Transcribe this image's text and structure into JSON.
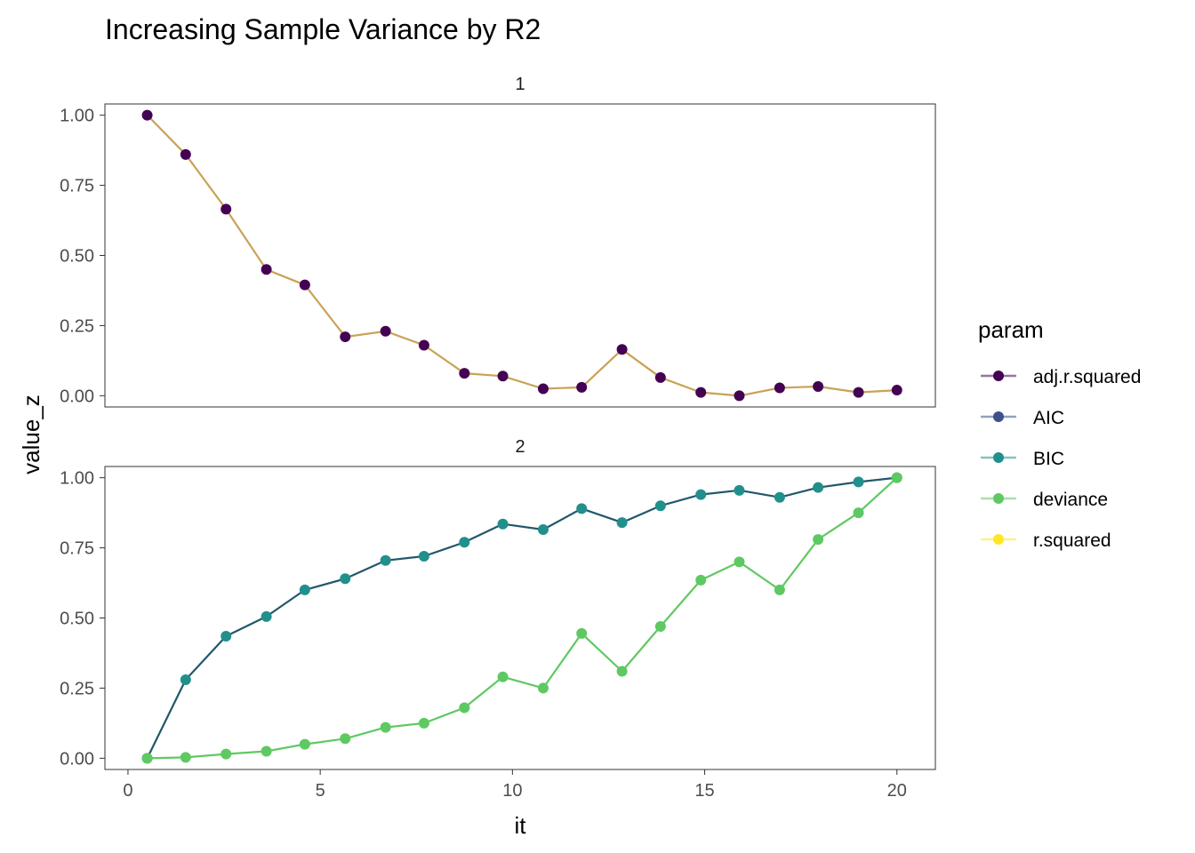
{
  "chart_data": {
    "type": "line",
    "title": "Increasing Sample Variance by R2",
    "xlabel": "it",
    "ylabel": "value_z",
    "xlim": [
      -0.6,
      21
    ],
    "ylim": [
      -0.04,
      1.04
    ],
    "x_ticks": [
      0,
      5,
      10,
      15,
      20
    ],
    "x_tick_labels": [
      "0",
      "5",
      "10",
      "15",
      "20"
    ],
    "y_ticks": [
      0,
      0.25,
      0.5,
      0.75,
      1
    ],
    "y_tick_labels": [
      "0.00",
      "0.25",
      "0.50",
      "0.75",
      "1.00"
    ],
    "grid": false,
    "legend": {
      "title": "param",
      "position": "right",
      "entries": [
        {
          "name": "adj.r.squared",
          "color": "#440154"
        },
        {
          "name": "AIC",
          "color": "#3b528b"
        },
        {
          "name": "BIC",
          "color": "#21908c"
        },
        {
          "name": "deviance",
          "color": "#5ec962"
        },
        {
          "name": "r.squared",
          "color": "#fde725"
        }
      ]
    },
    "x": [
      0.5,
      1.5,
      2.55,
      3.6,
      4.6,
      5.65,
      6.7,
      7.7,
      8.75,
      9.75,
      10.8,
      11.8,
      12.85,
      13.85,
      14.9,
      15.9,
      16.95,
      17.95,
      19.0,
      20.0
    ],
    "panels": [
      {
        "strip": "1",
        "series": [
          {
            "name": "adj.r.squared",
            "color": "#440154",
            "line_color": "#c9a255",
            "values": [
              1.0,
              0.86,
              0.665,
              0.45,
              0.395,
              0.21,
              0.23,
              0.18,
              0.08,
              0.07,
              0.025,
              0.03,
              0.165,
              0.065,
              0.012,
              0.0,
              0.028,
              0.033,
              0.012,
              0.02
            ]
          }
        ]
      },
      {
        "strip": "2",
        "series": [
          {
            "name": "BIC",
            "color": "#21908c",
            "line_color": "#21586b",
            "values": [
              0.0,
              0.28,
              0.435,
              0.505,
              0.6,
              0.64,
              0.705,
              0.72,
              0.77,
              0.835,
              0.815,
              0.89,
              0.84,
              0.9,
              0.94,
              0.955,
              0.93,
              0.965,
              0.985,
              1.0
            ]
          },
          {
            "name": "deviance",
            "color": "#5ec962",
            "line_color": "#5ec962",
            "values": [
              0.0,
              0.003,
              0.015,
              0.025,
              0.05,
              0.07,
              0.11,
              0.125,
              0.18,
              0.29,
              0.25,
              0.445,
              0.31,
              0.47,
              0.635,
              0.7,
              0.6,
              0.78,
              0.875,
              1.0
            ]
          }
        ]
      }
    ]
  }
}
